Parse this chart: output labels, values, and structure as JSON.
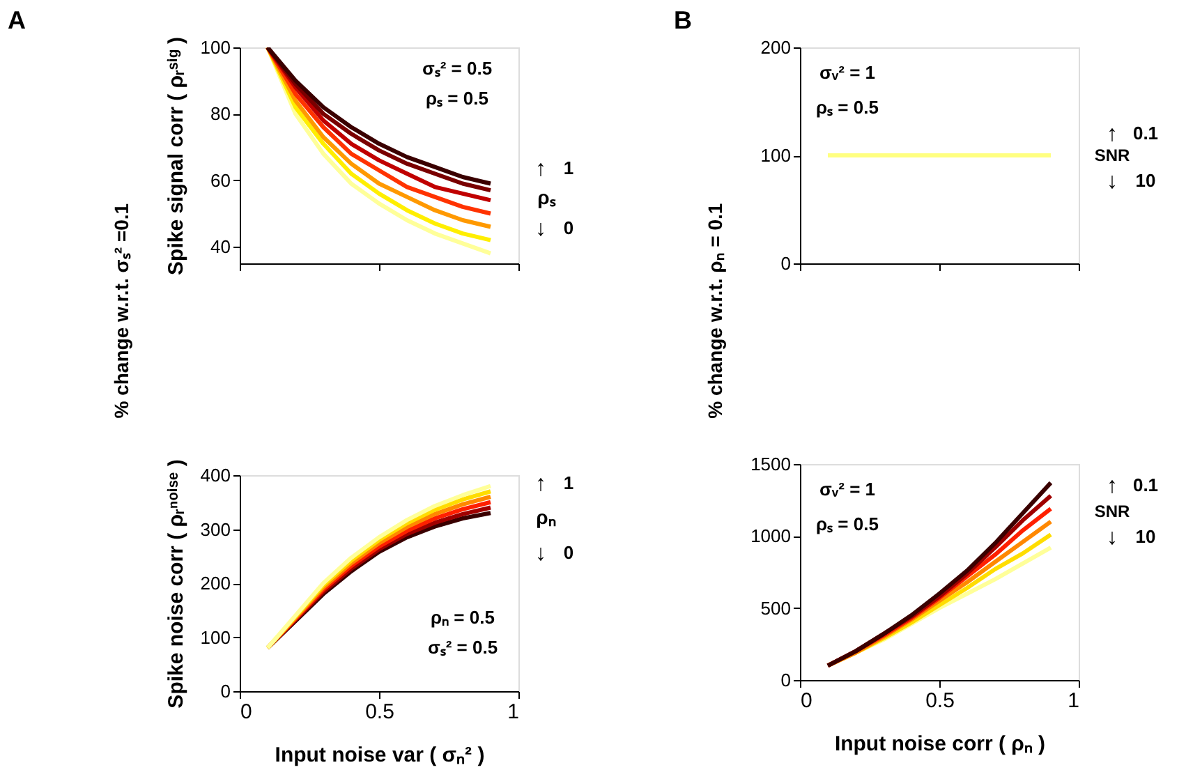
{
  "chart_data": [
    {
      "type": "line",
      "ylabel": "Spike signal corr ( ρᵣˢⁱᵍ )",
      "xlim": [
        0,
        1
      ],
      "xticks": [
        0,
        0.5,
        1
      ],
      "ylim": [
        35,
        100
      ],
      "yticks": [
        40,
        60,
        80,
        100
      ],
      "tick_labels": "y",
      "grid": false,
      "annotations": [
        "A",
        "% change w.r.t.  σₛ² =0.1",
        "σₛ²  = 0.5",
        "ρₛ = 0.5",
        "↑",
        "1",
        "ρₛ",
        "↓",
        "0"
      ],
      "x": [
        0.1,
        0.2,
        0.3,
        0.4,
        0.5,
        0.6,
        0.7,
        0.8,
        0.9
      ],
      "series": [
        {
          "color": "#ffff99",
          "values": [
            100,
            80,
            68,
            59,
            53,
            48,
            44,
            41,
            38
          ]
        },
        {
          "color": "#ffee00",
          "values": [
            100,
            82,
            71,
            62,
            56,
            51,
            47,
            44,
            42
          ]
        },
        {
          "color": "#ff9900",
          "values": [
            100,
            84,
            73,
            65,
            59,
            55,
            51,
            48,
            46
          ]
        },
        {
          "color": "#ff3300",
          "values": [
            100,
            86,
            76,
            68,
            63,
            58,
            55,
            52,
            50
          ]
        },
        {
          "color": "#c00000",
          "values": [
            100,
            88,
            78,
            71,
            66,
            62,
            58,
            56,
            54
          ]
        },
        {
          "color": "#7a0000",
          "values": [
            100,
            89,
            80,
            74,
            69,
            65,
            62,
            59,
            57
          ]
        },
        {
          "color": "#3a0000",
          "values": [
            100,
            90,
            82,
            76,
            71,
            67,
            64,
            61,
            59
          ]
        }
      ]
    },
    {
      "type": "line",
      "ylabel": "Spike noise corr ( ρᵣⁿᵒⁱˢᵉ )",
      "xlabel": "Input noise var ( σₙ² )",
      "xlim": [
        0,
        1
      ],
      "xticks": [
        0,
        0.5,
        1
      ],
      "ylim": [
        0,
        400
      ],
      "yticks": [
        0,
        100,
        200,
        300,
        400
      ],
      "grid": false,
      "annotations": [
        "ρₙ = 0.5",
        "σₛ²  = 0.5",
        "↑",
        "1",
        "ρₙ",
        "↓",
        "0"
      ],
      "x": [
        0.1,
        0.2,
        0.3,
        0.4,
        0.5,
        0.6,
        0.7,
        0.8,
        0.9
      ],
      "series": [
        {
          "color": "#3a0000",
          "values": [
            80,
            130,
            180,
            222,
            258,
            285,
            305,
            320,
            330
          ]
        },
        {
          "color": "#a00000",
          "values": [
            80,
            132,
            184,
            227,
            263,
            291,
            312,
            328,
            340
          ]
        },
        {
          "color": "#ff2000",
          "values": [
            80,
            134,
            188,
            232,
            268,
            297,
            320,
            337,
            350
          ]
        },
        {
          "color": "#ff8800",
          "values": [
            80,
            136,
            192,
            237,
            274,
            304,
            328,
            346,
            360
          ]
        },
        {
          "color": "#ffdd00",
          "values": [
            80,
            138,
            196,
            242,
            280,
            311,
            336,
            355,
            370
          ]
        },
        {
          "color": "#ffff99",
          "values": [
            80,
            140,
            200,
            247,
            285,
            317,
            343,
            363,
            380
          ]
        }
      ]
    },
    {
      "type": "line",
      "ylim": [
        0,
        200
      ],
      "yticks": [
        0,
        100,
        200
      ],
      "xlim": [
        0,
        1
      ],
      "xticks": [
        0,
        0.5,
        1
      ],
      "tick_labels": "y",
      "grid": false,
      "annotations": [
        "B",
        "% change w.r.t. ρₙ = 0.1",
        "σᵥ²  = 1",
        "ρₛ = 0.5",
        "↑",
        "0.1",
        "SNR",
        "↓",
        "10"
      ],
      "x": [
        0.1,
        0.9
      ],
      "series": [
        {
          "color": "#ffff80",
          "values": [
            100,
            100
          ]
        }
      ]
    },
    {
      "type": "line",
      "xlabel": "Input noise corr ( ρₙ )",
      "xlim": [
        0,
        1
      ],
      "xticks": [
        0,
        0.5,
        1
      ],
      "ylim": [
        0,
        1500
      ],
      "yticks": [
        0,
        500,
        1000,
        1500
      ],
      "grid": false,
      "annotations": [
        "σᵥ²  = 1",
        "ρₛ = 0.5",
        "↑",
        "0.1",
        "SNR",
        "↓",
        "10"
      ],
      "x": [
        0.1,
        0.2,
        0.3,
        0.4,
        0.5,
        0.6,
        0.7,
        0.8,
        0.9
      ],
      "series": [
        {
          "color": "#ffff99",
          "values": [
            100,
            190,
            280,
            390,
            500,
            600,
            700,
            810,
            920
          ]
        },
        {
          "color": "#ffdd00",
          "values": [
            100,
            190,
            290,
            400,
            520,
            640,
            770,
            880,
            1010
          ]
        },
        {
          "color": "#ff8800",
          "values": [
            100,
            190,
            300,
            420,
            550,
            680,
            820,
            960,
            1100
          ]
        },
        {
          "color": "#ff2000",
          "values": [
            100,
            200,
            310,
            430,
            570,
            720,
            870,
            1040,
            1190
          ]
        },
        {
          "color": "#a00000",
          "values": [
            100,
            200,
            320,
            440,
            580,
            740,
            920,
            1110,
            1280
          ]
        },
        {
          "color": "#3a0000",
          "values": [
            100,
            200,
            320,
            450,
            600,
            760,
            950,
            1160,
            1370
          ]
        }
      ]
    }
  ]
}
